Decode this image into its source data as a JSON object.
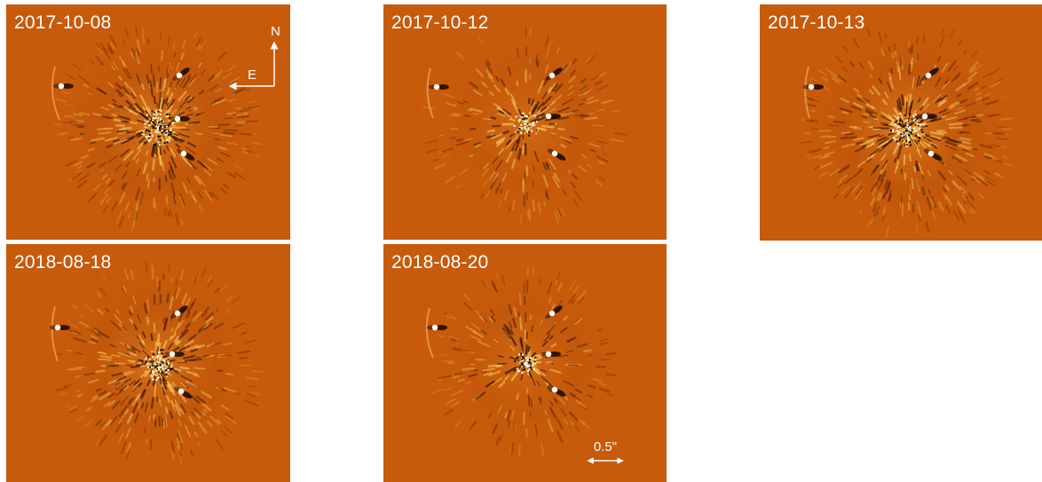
{
  "panels": [
    {
      "id": "p1",
      "date": "2017-10-08"
    },
    {
      "id": "p2",
      "date": "2017-10-12"
    },
    {
      "id": "p3",
      "date": "2017-10-13"
    },
    {
      "id": "p4",
      "date": "2018-08-18"
    },
    {
      "id": "p5",
      "date": "2018-08-20"
    }
  ],
  "compass": {
    "north": "N",
    "east": "E"
  },
  "scale": {
    "label": "0.5\""
  },
  "colors": {
    "background": "#c75a0b",
    "speckle_light": "#f7c35a",
    "speckle_dark": "#3a1400",
    "planet": "#ffffff"
  }
}
